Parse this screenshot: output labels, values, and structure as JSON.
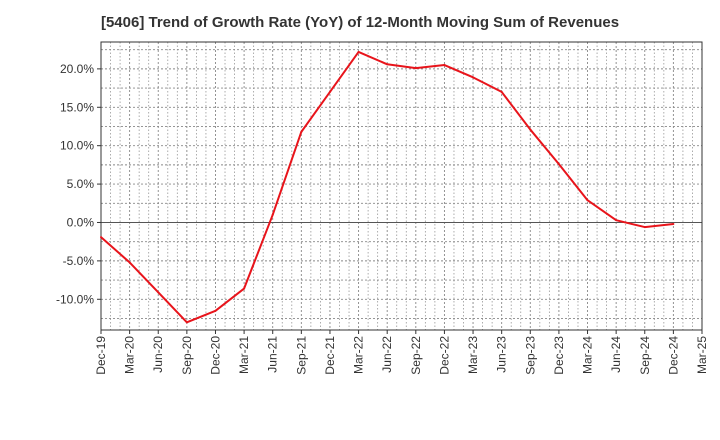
{
  "chart_data": {
    "type": "line",
    "title": "[5406]  Trend of Growth Rate (YoY) of 12-Month Moving Sum of Revenues",
    "xlabel": "",
    "ylabel": "",
    "x_ticks": [
      "Dec-19",
      "Mar-20",
      "Jun-20",
      "Sep-20",
      "Dec-20",
      "Mar-21",
      "Jun-21",
      "Sep-21",
      "Dec-21",
      "Mar-22",
      "Jun-22",
      "Sep-22",
      "Dec-22",
      "Mar-23",
      "Jun-23",
      "Sep-23",
      "Dec-23",
      "Mar-24",
      "Jun-24",
      "Sep-24",
      "Dec-24",
      "Mar-25"
    ],
    "y_ticks": [
      {
        "value": 20,
        "label": "20.0%"
      },
      {
        "value": 15,
        "label": "15.0%"
      },
      {
        "value": 10,
        "label": "10.0%"
      },
      {
        "value": 5,
        "label": "5.0%"
      },
      {
        "value": 0,
        "label": "0.0%"
      },
      {
        "value": -5,
        "label": "-5.0%"
      },
      {
        "value": -10,
        "label": "-10.0%"
      }
    ],
    "ylim": [
      -14,
      23.5
    ],
    "grid": true,
    "series": [
      {
        "color": "#e8141b",
        "x": [
          "Dec-19",
          "Mar-20",
          "Jun-20",
          "Sep-20",
          "Dec-20",
          "Mar-21",
          "Jun-21",
          "Sep-21",
          "Dec-21",
          "Mar-22",
          "Jun-22",
          "Sep-22",
          "Dec-22",
          "Mar-23",
          "Jun-23",
          "Sep-23",
          "Dec-23",
          "Mar-24",
          "Jun-24",
          "Sep-24",
          "Dec-24"
        ],
        "values": [
          -1.9,
          -5.2,
          -9.1,
          -13.0,
          -11.5,
          -8.6,
          1.0,
          11.8,
          17.0,
          22.2,
          20.6,
          20.1,
          20.5,
          18.9,
          17.0,
          12.1,
          7.6,
          2.9,
          0.3,
          -0.6,
          -0.2
        ]
      }
    ]
  }
}
